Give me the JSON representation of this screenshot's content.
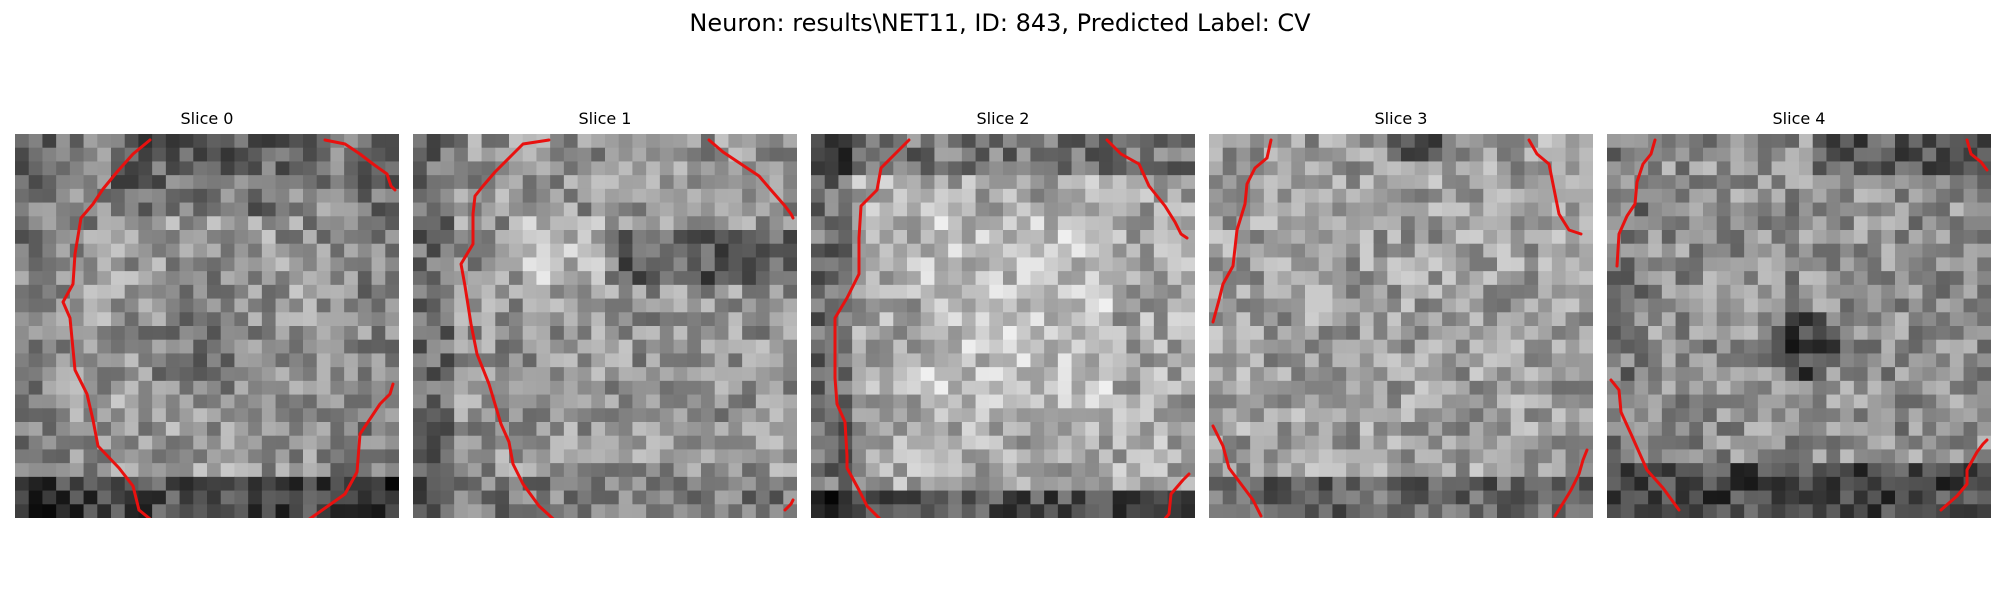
{
  "figure": {
    "title": "Neuron: results\\NET11, ID: 843, Predicted Label: CV"
  },
  "panels": [
    {
      "title": "Slice 0"
    },
    {
      "title": "Slice 1"
    },
    {
      "title": "Slice 2"
    },
    {
      "title": "Slice 3"
    },
    {
      "title": "Slice 4"
    }
  ],
  "colors": {
    "background": "#ffffff",
    "contour": "#e8110f",
    "colormap": "gray"
  },
  "image": {
    "grid_size": 28,
    "description_values": "grayscale microscopy patches with red segmentation contours"
  }
}
